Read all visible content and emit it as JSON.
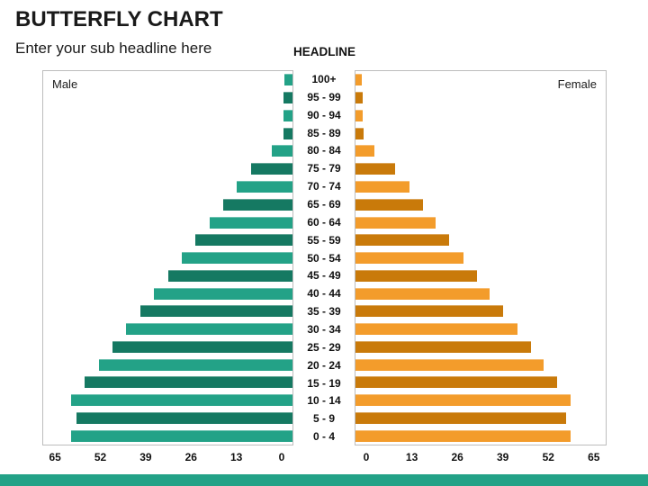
{
  "header": {
    "title": "BUTTERFLY CHART",
    "subtitle": "Enter your sub headline here",
    "center_headline": "HEADLINE"
  },
  "chart_data": {
    "type": "bar",
    "variant": "butterfly-population-pyramid",
    "orientation": "horizontal",
    "title": "BUTTERFLY CHART",
    "center_title": "HEADLINE",
    "categories": [
      "100+",
      "95 - 99",
      "90 - 94",
      "85 - 89",
      "80 - 84",
      "75 - 79",
      "70 - 74",
      "65 - 69",
      "60 - 64",
      "55 - 59",
      "50 - 54",
      "45 - 49",
      "40 - 44",
      "35 - 39",
      "30 - 34",
      "25 - 29",
      "20 - 24",
      "15 - 19",
      "10 - 14",
      "5 - 9",
      "0 - 4"
    ],
    "series": [
      {
        "name": "Male",
        "side": "left",
        "values": [
          2.3,
          2.6,
          2.6,
          2.6,
          6,
          12,
          16,
          20,
          24,
          28,
          32,
          36,
          40,
          44,
          48,
          52,
          56,
          60,
          64,
          62.5,
          64
        ]
      },
      {
        "name": "Female",
        "side": "right",
        "values": [
          1.8,
          2.1,
          2.1,
          2.3,
          5.5,
          11.5,
          15.5,
          19.5,
          23,
          27,
          31,
          35,
          38.5,
          42.5,
          46.5,
          50.5,
          54,
          58,
          62,
          60.5,
          62
        ]
      }
    ],
    "x_axis": {
      "ticks": [
        0,
        13,
        26,
        39,
        52,
        65
      ],
      "tick_max": 65,
      "plot_max_units": 72,
      "zero_inset_units": 3.35,
      "mirrored": true
    },
    "legend": "none",
    "grid": false,
    "bar_color_pattern": "alternating light/dark per row"
  },
  "colors": {
    "male_light": "#23A287",
    "male_dark": "#157962",
    "female_light": "#F39C2B",
    "female_dark": "#C97A0A",
    "footer_bar": "#23A287",
    "plot_border": "#BDBDBD",
    "text": "#1A1A1A"
  }
}
